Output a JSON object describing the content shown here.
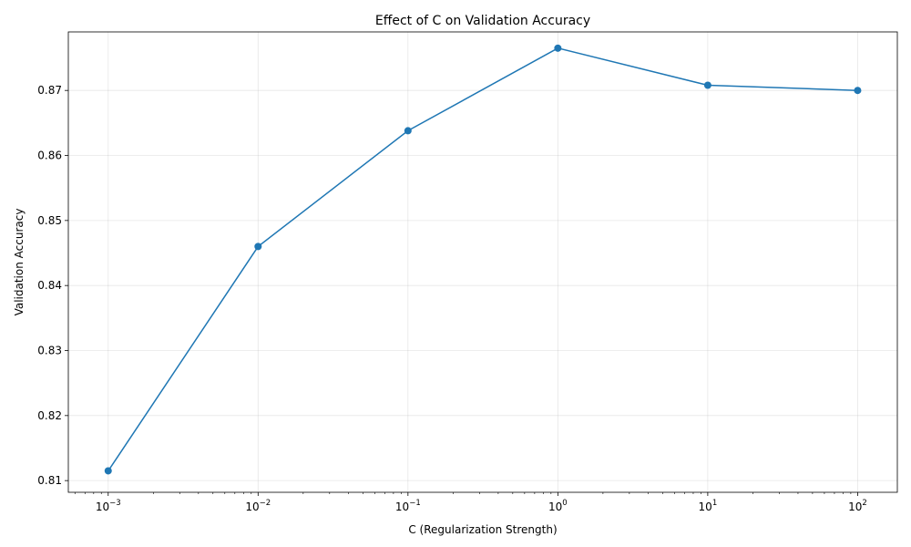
{
  "chart_data": {
    "type": "line",
    "title": "Effect of C on Validation Accuracy",
    "xlabel": "C (Regularization Strength)",
    "ylabel": "Validation Accuracy",
    "x_scale": "log",
    "x": [
      0.001,
      0.01,
      0.1,
      1,
      10,
      100
    ],
    "x_tick_exponents": [
      "-3",
      "-2",
      "-1",
      "0",
      "1",
      "2"
    ],
    "series": [
      {
        "values": [
          0.8115,
          0.846,
          0.8638,
          0.8765,
          0.8708,
          0.87
        ]
      }
    ],
    "y_ticks": [
      "0.81",
      "0.82",
      "0.83",
      "0.84",
      "0.85",
      "0.86",
      "0.87"
    ],
    "ylim": [
      0.8082,
      0.879
    ],
    "xlim": [
      0.000542,
      184
    ],
    "grid": true,
    "line_color": "#1f77b4"
  }
}
